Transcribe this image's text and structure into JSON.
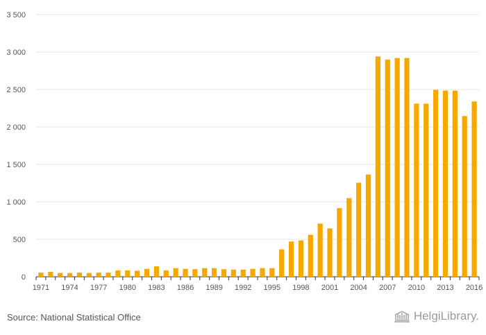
{
  "chart_data": {
    "type": "bar",
    "title": "",
    "xlabel": "",
    "ylabel": "",
    "ylim": [
      0,
      3500
    ],
    "yticks": [
      0,
      500,
      1000,
      1500,
      2000,
      2500,
      3000,
      3500
    ],
    "ytick_labels": [
      "0",
      "500",
      "1 000",
      "1 500",
      "2 000",
      "2 500",
      "3 000",
      "3 500"
    ],
    "bar_color": "#f5a800",
    "categories": [
      "1971",
      "1972",
      "1973",
      "1974",
      "1975",
      "1976",
      "1977",
      "1978",
      "1979",
      "1980",
      "1981",
      "1982",
      "1983",
      "1984",
      "1985",
      "1986",
      "1987",
      "1988",
      "1989",
      "1990",
      "1991",
      "1992",
      "1993",
      "1994",
      "1995",
      "1996",
      "1997",
      "1998",
      "1999",
      "2000",
      "2001",
      "2002",
      "2003",
      "2004",
      "2005",
      "2006",
      "2007",
      "2008",
      "2009",
      "2010",
      "2011",
      "2012",
      "2013",
      "2014",
      "2015",
      "2016"
    ],
    "values": [
      55,
      65,
      50,
      50,
      55,
      50,
      55,
      55,
      85,
      85,
      80,
      105,
      140,
      85,
      115,
      105,
      100,
      115,
      115,
      100,
      95,
      95,
      105,
      115,
      115,
      365,
      470,
      485,
      560,
      710,
      645,
      915,
      1050,
      1255,
      1365,
      2940,
      2900,
      2920,
      2920,
      2310,
      2310,
      2495,
      2485,
      2485,
      2145,
      2340
    ],
    "xtick_labels": [
      "1971",
      "1974",
      "1977",
      "1980",
      "1983",
      "1986",
      "1989",
      "1992",
      "1995",
      "1998",
      "2001",
      "2004",
      "2007",
      "2010",
      "2013",
      "2016"
    ]
  },
  "footer": {
    "source": "Source: National Statistical Office",
    "brand": "HelgiLibrary."
  }
}
